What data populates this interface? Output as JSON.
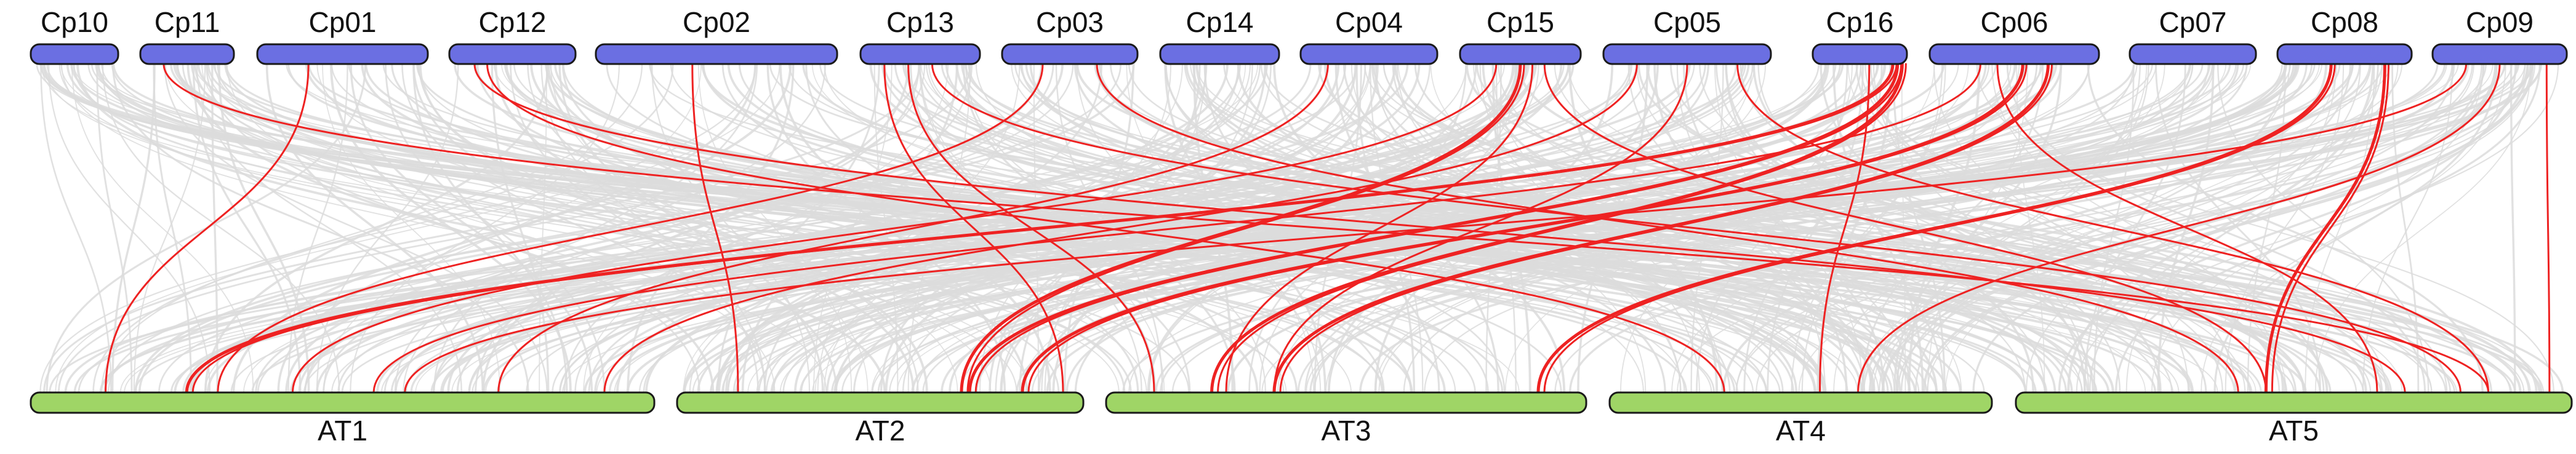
{
  "colors": {
    "top_chromosome_fill": "#6b6fe2",
    "bottom_chromosome_fill": "#9fd566",
    "background_link": "#dcdcdc",
    "highlight_link": "#ee2222"
  },
  "top_chromosomes": [
    {
      "id": "Cp10",
      "label": "Cp10"
    },
    {
      "id": "Cp11",
      "label": "Cp11"
    },
    {
      "id": "Cp01",
      "label": "Cp01"
    },
    {
      "id": "Cp12",
      "label": "Cp12"
    },
    {
      "id": "Cp02",
      "label": "Cp02"
    },
    {
      "id": "Cp13",
      "label": "Cp13"
    },
    {
      "id": "Cp03",
      "label": "Cp03"
    },
    {
      "id": "Cp14",
      "label": "Cp14"
    },
    {
      "id": "Cp04",
      "label": "Cp04"
    },
    {
      "id": "Cp15",
      "label": "Cp15"
    },
    {
      "id": "Cp05",
      "label": "Cp05"
    },
    {
      "id": "Cp16",
      "label": "Cp16"
    },
    {
      "id": "Cp06",
      "label": "Cp06"
    },
    {
      "id": "Cp07",
      "label": "Cp07"
    },
    {
      "id": "Cp08",
      "label": "Cp08"
    },
    {
      "id": "Cp09",
      "label": "Cp09"
    }
  ],
  "bottom_chromosomes": [
    {
      "id": "AT1",
      "label": "AT1"
    },
    {
      "id": "AT2",
      "label": "AT2"
    },
    {
      "id": "AT3",
      "label": "AT3"
    },
    {
      "id": "AT4",
      "label": "AT4"
    },
    {
      "id": "AT5",
      "label": "AT5"
    }
  ],
  "highlight_links": [
    {
      "from": "Cp11",
      "to": "AT5"
    },
    {
      "from": "Cp01",
      "to": "AT1"
    },
    {
      "from": "Cp12",
      "to": "AT5"
    },
    {
      "from": "Cp12",
      "to": "AT4"
    },
    {
      "from": "Cp02",
      "to": "AT2"
    },
    {
      "from": "Cp13",
      "to": "AT2"
    },
    {
      "from": "Cp13",
      "to": "AT3"
    },
    {
      "from": "Cp13",
      "to": "AT5"
    },
    {
      "from": "Cp03",
      "to": "AT1"
    },
    {
      "from": "Cp03",
      "to": "AT5"
    },
    {
      "from": "Cp04",
      "to": "AT1"
    },
    {
      "from": "Cp15",
      "to": "AT1"
    },
    {
      "from": "Cp15",
      "to": "AT2"
    },
    {
      "from": "Cp15",
      "to": "AT3"
    },
    {
      "from": "Cp15",
      "to": "AT5"
    },
    {
      "from": "Cp05",
      "to": "AT1"
    },
    {
      "from": "Cp05",
      "to": "AT3"
    },
    {
      "from": "Cp05",
      "to": "AT5"
    },
    {
      "from": "Cp16",
      "to": "AT1"
    },
    {
      "from": "Cp16",
      "to": "AT2"
    },
    {
      "from": "Cp16",
      "to": "AT3"
    },
    {
      "from": "Cp16",
      "to": "AT4"
    },
    {
      "from": "Cp06",
      "to": "AT1"
    },
    {
      "from": "Cp06",
      "to": "AT2"
    },
    {
      "from": "Cp06",
      "to": "AT3"
    },
    {
      "from": "Cp06",
      "to": "AT5"
    },
    {
      "from": "Cp08",
      "to": "AT3"
    },
    {
      "from": "Cp08",
      "to": "AT5"
    },
    {
      "from": "Cp09",
      "to": "AT1"
    },
    {
      "from": "Cp09",
      "to": "AT4"
    },
    {
      "from": "Cp09",
      "to": "AT5"
    }
  ]
}
